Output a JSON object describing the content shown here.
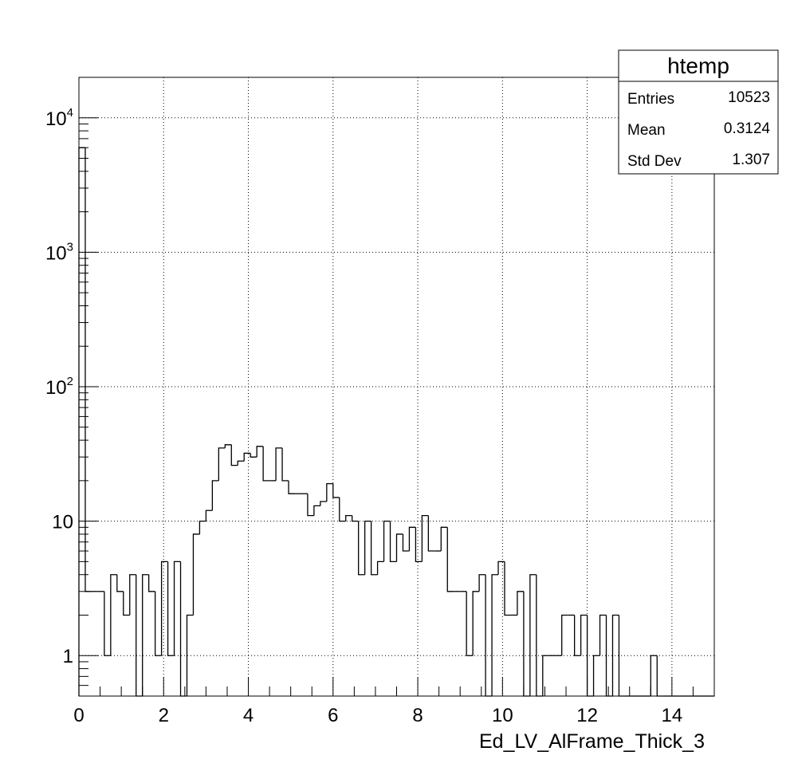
{
  "chart_data": {
    "type": "histogram",
    "title": "",
    "xlabel": "Ed_LV_AlFrame_Thick_3",
    "ylabel": "",
    "xlim": [
      0,
      15
    ],
    "ylim": [
      0.5,
      20000
    ],
    "log_y": true,
    "grid": true,
    "bin_width": 0.15,
    "x_ticks": [
      "0",
      "2",
      "4",
      "6",
      "8",
      "10",
      "12",
      "14"
    ],
    "y_ticks": [
      {
        "value": 1,
        "base": "1",
        "exp": ""
      },
      {
        "value": 10,
        "base": "10",
        "exp": ""
      },
      {
        "value": 100,
        "base": "10",
        "exp": "2"
      },
      {
        "value": 1000,
        "base": "10",
        "exp": "3"
      },
      {
        "value": 10000,
        "base": "10",
        "exp": "4"
      }
    ],
    "bin_contents": [
      6000,
      3,
      3,
      3,
      1,
      4,
      3,
      2,
      4,
      0,
      4,
      3,
      1,
      5,
      1,
      5,
      0,
      2,
      8,
      10,
      12,
      20,
      35,
      37,
      26,
      28,
      32,
      30,
      36,
      20,
      20,
      35,
      20,
      16,
      16,
      16,
      11,
      13,
      14,
      19,
      15,
      10,
      11,
      10,
      4,
      10,
      4,
      5,
      10,
      5,
      8,
      6,
      9,
      5,
      11,
      6,
      6,
      9,
      3,
      3,
      3,
      1,
      3,
      4,
      0,
      4,
      5,
      2,
      2,
      3,
      0,
      4,
      0,
      1,
      1,
      1,
      2,
      2,
      1,
      2,
      0,
      1,
      2,
      0,
      2,
      0,
      0,
      0,
      0,
      0,
      1,
      0,
      0,
      0,
      0,
      0,
      0,
      0,
      0,
      0
    ],
    "stats_box": {
      "title": "htemp",
      "rows": [
        {
          "label": "Entries",
          "value": "10523"
        },
        {
          "label": "Mean",
          "value": "0.3124"
        },
        {
          "label": "Std Dev",
          "value": "1.307"
        }
      ]
    }
  }
}
